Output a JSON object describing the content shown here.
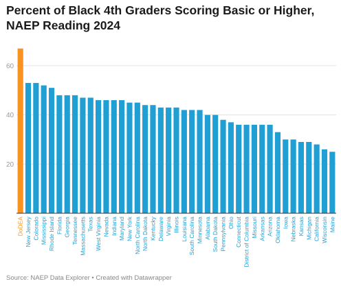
{
  "chart_data": {
    "type": "bar",
    "title": "Percent of Black 4th Graders Scoring Basic or Higher, NAEP Reading 2024",
    "xlabel": "",
    "ylabel": "",
    "ylim": [
      0,
      70
    ],
    "yticks": [
      20,
      40,
      60
    ],
    "grid": true,
    "highlight_category": "DoDEA",
    "colors": {
      "default": "#1f9fd4",
      "highlight": "#f7931e",
      "grid": "#e0e0e0",
      "axis": "#333333",
      "tick_text": "#999999"
    },
    "categories": [
      "DoDEA",
      "New Jersey",
      "Colorado",
      "Mississippi",
      "Rhode Island",
      "Florida",
      "Georgia",
      "Tennessee",
      "Massachusetts",
      "Texas",
      "West Virginia",
      "Nevada",
      "Indiana",
      "Maryland",
      "New York",
      "North Carolina",
      "North Dakota",
      "Kentucky",
      "Delaware",
      "Virginia",
      "Illinois",
      "Louisiana",
      "South Carolina",
      "Minnesota",
      "Alabama",
      "South Dakota",
      "Pennsylvania",
      "Ohio",
      "Connecticut",
      "District of Columbia",
      "Missouri",
      "Arkansas",
      "Arizona",
      "Oklahoma",
      "Iowa",
      "Nebraska",
      "Kansas",
      "Michigan",
      "California",
      "Wisconsin",
      "Maine"
    ],
    "values": [
      67,
      53,
      53,
      52,
      51,
      48,
      48,
      48,
      47,
      47,
      46,
      46,
      46,
      46,
      45,
      45,
      44,
      44,
      43,
      43,
      43,
      42,
      42,
      42,
      40,
      40,
      38,
      37,
      36,
      36,
      36,
      36,
      36,
      33,
      30,
      30,
      29,
      29,
      28,
      26,
      25
    ]
  },
  "footer": "Source: NAEP Data Explorer • Created with Datawrapper"
}
